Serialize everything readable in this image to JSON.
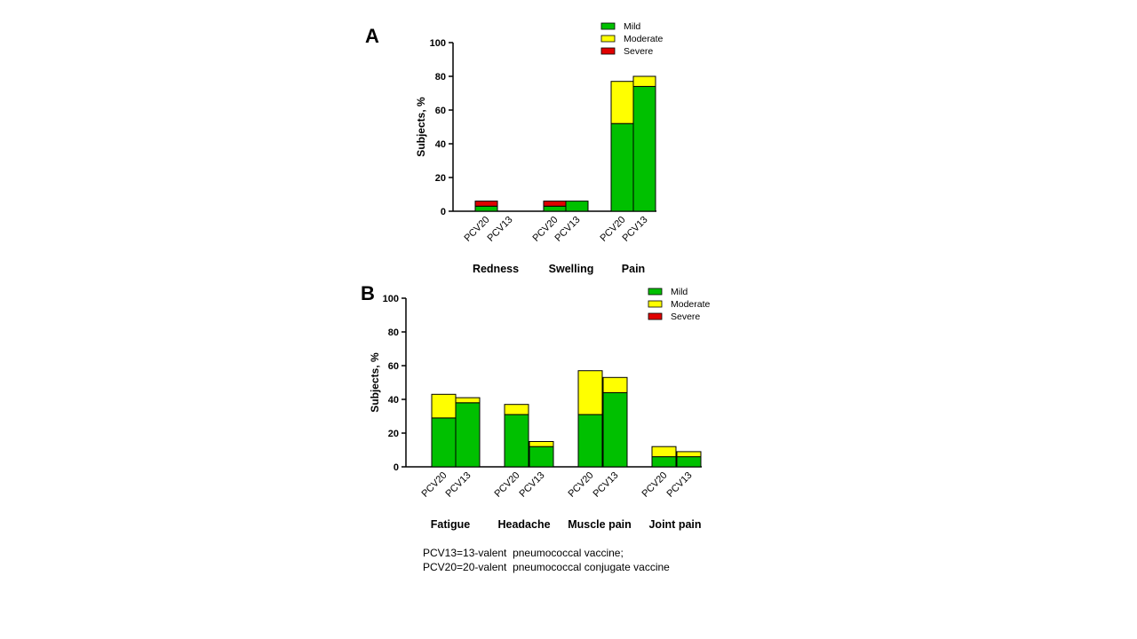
{
  "chart_data": [
    {
      "type": "bar",
      "stacked": true,
      "panel_label": "A",
      "ylabel": "Subjects, %",
      "ylim": [
        0,
        100
      ],
      "yticks": [
        "0",
        "20",
        "40",
        "60",
        "80",
        "100"
      ],
      "groups": [
        "Redness",
        "Swelling",
        "Pain"
      ],
      "categories": [
        "PCV20",
        "PCV13",
        "PCV20",
        "PCV13",
        "PCV20",
        "PCV13"
      ],
      "series": [
        {
          "name": "Mild",
          "color": "#00c000",
          "values": [
            3,
            0,
            3,
            6,
            52,
            74
          ]
        },
        {
          "name": "Moderate",
          "color": "#ffff00",
          "values": [
            0,
            0,
            0,
            0,
            25,
            6
          ]
        },
        {
          "name": "Severe",
          "color": "#e00000",
          "values": [
            3,
            0,
            3,
            0,
            0,
            0
          ]
        }
      ],
      "legend": "top-right"
    },
    {
      "type": "bar",
      "stacked": true,
      "panel_label": "B",
      "ylabel": "Subjects, %",
      "ylim": [
        0,
        100
      ],
      "yticks": [
        "0",
        "20",
        "40",
        "60",
        "80",
        "100"
      ],
      "groups": [
        "Fatigue",
        "Headache",
        "Muscle pain",
        "Joint pain"
      ],
      "categories": [
        "PCV20",
        "PCV13",
        "PCV20",
        "PCV13",
        "PCV20",
        "PCV13",
        "PCV20",
        "PCV13"
      ],
      "series": [
        {
          "name": "Mild",
          "color": "#00c000",
          "values": [
            29,
            38,
            31,
            12,
            31,
            44,
            6,
            6
          ]
        },
        {
          "name": "Moderate",
          "color": "#ffff00",
          "values": [
            14,
            3,
            6,
            3,
            26,
            9,
            6,
            3
          ]
        },
        {
          "name": "Severe",
          "color": "#e00000",
          "values": [
            0,
            0,
            0,
            0,
            0,
            0,
            0,
            0
          ]
        }
      ],
      "legend": "top-right"
    }
  ],
  "footnote": {
    "line1": "PCV13=13-valent  pneumococcal vaccine;",
    "line2": "PCV20=20-valent  pneumococcal conjugate vaccine"
  }
}
